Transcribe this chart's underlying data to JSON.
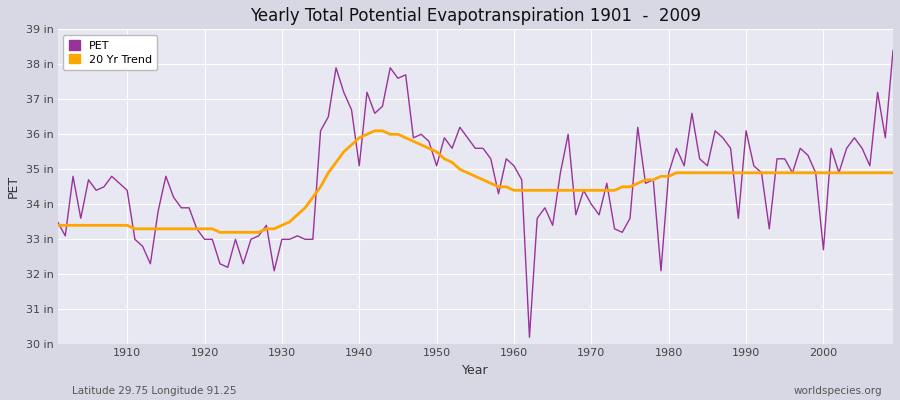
{
  "title": "Yearly Total Potential Evapotranspiration 1901  -  2009",
  "xlabel": "Year",
  "ylabel": "PET",
  "footnote_left": "Latitude 29.75 Longitude 91.25",
  "footnote_right": "worldspecies.org",
  "pet_color": "#993399",
  "trend_color": "#FFA500",
  "fig_bg_color": "#d8d8e4",
  "plot_bg_color": "#e8e8f2",
  "years": [
    1901,
    1902,
    1903,
    1904,
    1905,
    1906,
    1907,
    1908,
    1909,
    1910,
    1911,
    1912,
    1913,
    1914,
    1915,
    1916,
    1917,
    1918,
    1919,
    1920,
    1921,
    1922,
    1923,
    1924,
    1925,
    1926,
    1927,
    1928,
    1929,
    1930,
    1931,
    1932,
    1933,
    1934,
    1935,
    1936,
    1937,
    1938,
    1939,
    1940,
    1941,
    1942,
    1943,
    1944,
    1945,
    1946,
    1947,
    1948,
    1949,
    1950,
    1951,
    1952,
    1953,
    1954,
    1955,
    1956,
    1957,
    1958,
    1959,
    1960,
    1961,
    1962,
    1963,
    1964,
    1965,
    1966,
    1967,
    1968,
    1969,
    1970,
    1971,
    1972,
    1973,
    1974,
    1975,
    1976,
    1977,
    1978,
    1979,
    1980,
    1981,
    1982,
    1983,
    1984,
    1985,
    1986,
    1987,
    1988,
    1989,
    1990,
    1991,
    1992,
    1993,
    1994,
    1995,
    1996,
    1997,
    1998,
    1999,
    2000,
    2001,
    2002,
    2003,
    2004,
    2005,
    2006,
    2007,
    2008,
    2009
  ],
  "pet_values": [
    33.5,
    33.1,
    34.8,
    33.6,
    34.7,
    34.4,
    34.5,
    34.8,
    34.6,
    34.4,
    33.0,
    32.8,
    32.3,
    33.8,
    34.8,
    34.2,
    33.9,
    33.9,
    33.3,
    33.0,
    33.0,
    32.3,
    32.2,
    33.0,
    32.3,
    33.0,
    33.1,
    33.4,
    32.1,
    33.0,
    33.0,
    33.1,
    33.0,
    33.0,
    36.1,
    36.5,
    37.9,
    37.2,
    36.7,
    35.1,
    37.2,
    36.6,
    36.8,
    37.9,
    37.6,
    37.7,
    35.9,
    36.0,
    35.8,
    35.1,
    35.9,
    35.6,
    36.2,
    35.9,
    35.6,
    35.6,
    35.3,
    34.3,
    35.3,
    35.1,
    34.7,
    30.2,
    33.6,
    33.9,
    33.4,
    34.9,
    36.0,
    33.7,
    34.4,
    34.0,
    33.7,
    34.6,
    33.3,
    33.2,
    33.6,
    36.2,
    34.6,
    34.7,
    32.1,
    34.9,
    35.6,
    35.1,
    36.6,
    35.3,
    35.1,
    36.1,
    35.9,
    35.6,
    33.6,
    36.1,
    35.1,
    34.9,
    33.3,
    35.3,
    35.3,
    34.9,
    35.6,
    35.4,
    34.9,
    32.7,
    35.6,
    34.9,
    35.6,
    35.9,
    35.6,
    35.1,
    37.2,
    35.9,
    38.4
  ],
  "trend_values": [
    33.4,
    33.4,
    33.4,
    33.4,
    33.4,
    33.4,
    33.4,
    33.4,
    33.4,
    33.4,
    33.3,
    33.3,
    33.3,
    33.3,
    33.3,
    33.3,
    33.3,
    33.3,
    33.3,
    33.3,
    33.3,
    33.2,
    33.2,
    33.2,
    33.2,
    33.2,
    33.2,
    33.3,
    33.3,
    33.4,
    33.5,
    33.7,
    33.9,
    34.2,
    34.5,
    34.9,
    35.2,
    35.5,
    35.7,
    35.9,
    36.0,
    36.1,
    36.1,
    36.0,
    36.0,
    35.9,
    35.8,
    35.7,
    35.6,
    35.5,
    35.3,
    35.2,
    35.0,
    34.9,
    34.8,
    34.7,
    34.6,
    34.5,
    34.5,
    34.4,
    34.4,
    34.4,
    34.4,
    34.4,
    34.4,
    34.4,
    34.4,
    34.4,
    34.4,
    34.4,
    34.4,
    34.4,
    34.4,
    34.5,
    34.5,
    34.6,
    34.7,
    34.7,
    34.8,
    34.8,
    34.9,
    34.9,
    34.9,
    34.9,
    34.9,
    34.9,
    34.9,
    34.9,
    34.9,
    34.9,
    34.9,
    34.9,
    34.9,
    34.9,
    34.9,
    34.9,
    34.9,
    34.9,
    34.9,
    34.9,
    34.9,
    34.9,
    34.9,
    34.9,
    34.9,
    34.9,
    34.9,
    34.9,
    34.9
  ],
  "ylim": [
    30,
    39
  ],
  "yticks": [
    30,
    31,
    32,
    33,
    34,
    35,
    36,
    37,
    38,
    39
  ],
  "ytick_labels": [
    "30 in",
    "31 in",
    "32 in",
    "33 in",
    "34 in",
    "35 in",
    "36 in",
    "37 in",
    "38 in",
    "39 in"
  ],
  "xticks": [
    1910,
    1920,
    1930,
    1940,
    1950,
    1960,
    1970,
    1980,
    1990,
    2000
  ],
  "grid_color": "#ffffff",
  "pet_linewidth": 1.0,
  "trend_linewidth": 2.0
}
